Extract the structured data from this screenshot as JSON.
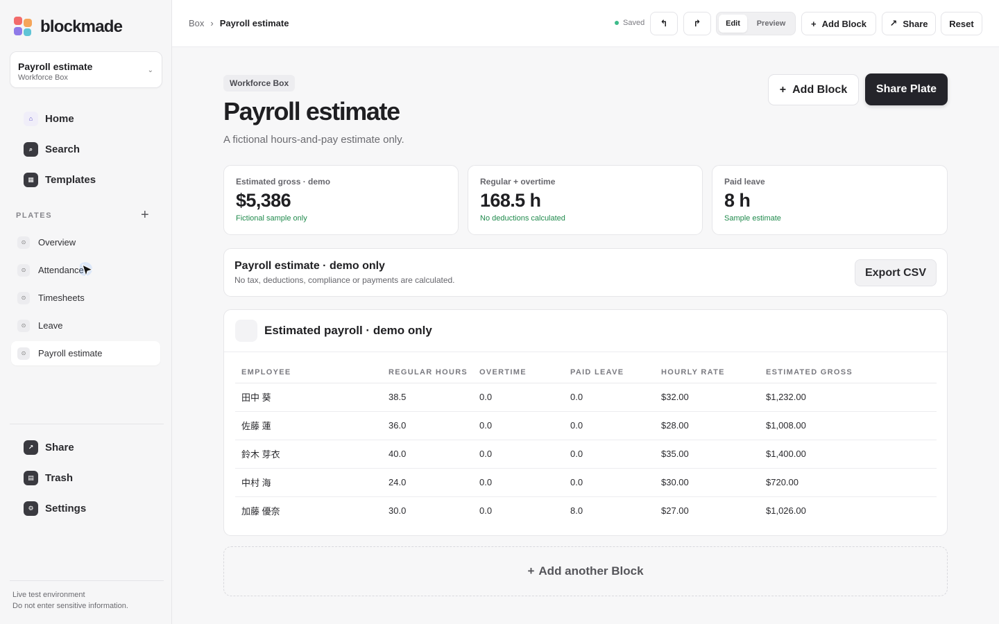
{
  "brand": {
    "name": "blockmade",
    "colors": [
      "#f26b6b",
      "#f5a55a",
      "#8f7ae8",
      "#5fc4d6"
    ]
  },
  "plate_selector": {
    "title": "Payroll estimate",
    "subtitle": "Workforce Box",
    "chevron": "⌄"
  },
  "nav": [
    {
      "label": "Home",
      "icon": "home-icon",
      "glyph": "⌂",
      "active": true
    },
    {
      "label": "Search",
      "icon": "search-icon",
      "glyph": "⌕"
    },
    {
      "label": "Templates",
      "icon": "templates-icon",
      "glyph": "▦"
    }
  ],
  "plates": {
    "section_label": "PLATES",
    "add_glyph": "+",
    "items": [
      {
        "label": "Overview"
      },
      {
        "label": "Attendance"
      },
      {
        "label": "Timesheets"
      },
      {
        "label": "Leave"
      },
      {
        "label": "Payroll estimate",
        "active": true
      }
    ],
    "item_glyph": "⊙"
  },
  "bottom_nav": [
    {
      "label": "Share",
      "icon": "share-icon",
      "glyph": "↗"
    },
    {
      "label": "Trash",
      "icon": "trash-icon",
      "glyph": "▤"
    },
    {
      "label": "Settings",
      "icon": "settings-icon",
      "glyph": "⚙"
    }
  ],
  "footer": {
    "line1": "Live test environment",
    "line2": "Do not enter sensitive information."
  },
  "topbar": {
    "breadcrumb_root": "Box",
    "breadcrumb_sep": "›",
    "breadcrumb_current": "Payroll estimate",
    "saved": "Saved",
    "undo_glyph": "↰",
    "redo_glyph": "↱",
    "mode_edit": "Edit",
    "mode_preview": "Preview",
    "add_block": "Add Block",
    "share": "Share",
    "reset": "Reset",
    "plus_glyph": "+",
    "share_glyph": "↗"
  },
  "page": {
    "tag": "Workforce Box",
    "title": "Payroll estimate",
    "subtitle": "A fictional hours-and-pay estimate only.",
    "add_block": "Add Block",
    "share_plate": "Share Plate"
  },
  "stats": [
    {
      "label": "Estimated gross · demo",
      "value": "$5,386",
      "note": "Fictional sample only"
    },
    {
      "label": "Regular + overtime",
      "value": "168.5 h",
      "note": "No deductions calculated"
    },
    {
      "label": "Paid leave",
      "value": "8 h",
      "note": "Sample estimate"
    }
  ],
  "banner": {
    "title": "Payroll estimate · demo only",
    "subtitle": "No tax, deductions, compliance or payments are calculated.",
    "export": "Export CSV"
  },
  "table": {
    "title": "Estimated payroll · demo only",
    "columns": [
      "EMPLOYEE",
      "REGULAR HOURS",
      "OVERTIME",
      "PAID LEAVE",
      "HOURLY RATE",
      "ESTIMATED GROSS"
    ],
    "rows": [
      [
        "田中 葵",
        "38.5",
        "0.0",
        "0.0",
        "$32.00",
        "$1,232.00"
      ],
      [
        "佐藤 蓮",
        "36.0",
        "0.0",
        "0.0",
        "$28.00",
        "$1,008.00"
      ],
      [
        "鈴木 芽衣",
        "40.0",
        "0.0",
        "0.0",
        "$35.00",
        "$1,400.00"
      ],
      [
        "中村 海",
        "24.0",
        "0.0",
        "0.0",
        "$30.00",
        "$720.00"
      ],
      [
        "加藤 優奈",
        "30.0",
        "0.0",
        "8.0",
        "$27.00",
        "$1,026.00"
      ]
    ]
  },
  "add_another": "Add another Block"
}
